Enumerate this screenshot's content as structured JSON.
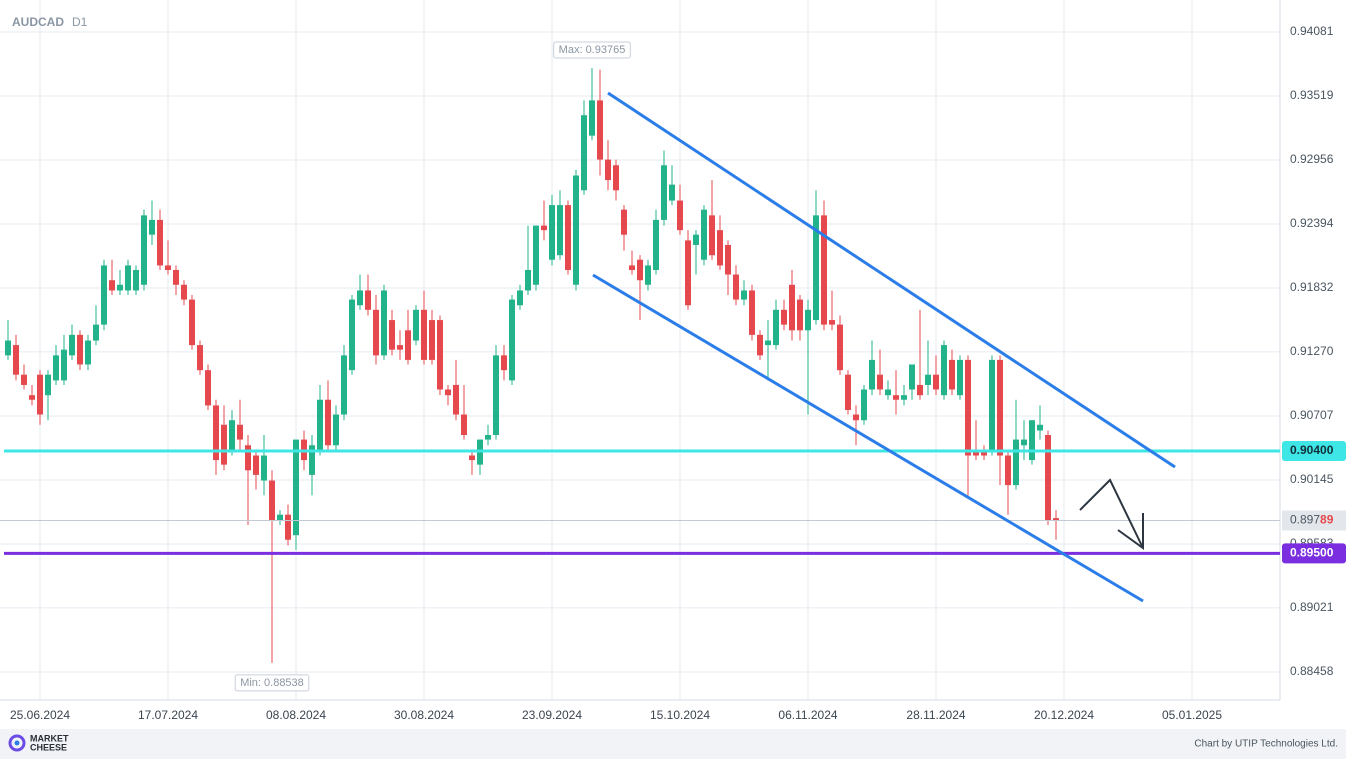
{
  "chart_data": {
    "type": "candlestick",
    "title": "AUDCAD",
    "timeframe": "D1",
    "xlim": [
      -1,
      159
    ],
    "ylim": [
      0.88212,
      0.94362
    ],
    "yticks": [
      0.94081,
      0.93519,
      0.92956,
      0.92394,
      0.91832,
      {
        "value": 0.9127,
        "label": "0.91270"
      },
      0.90707,
      0.90145,
      0.89583,
      0.89021,
      0.88458
    ],
    "xticks": [
      {
        "value": 4,
        "label": "25.06.2024"
      },
      {
        "value": 20,
        "label": "17.07.2024"
      },
      {
        "value": 36,
        "label": "08.08.2024"
      },
      {
        "value": 52,
        "label": "30.08.2024"
      },
      {
        "value": 68,
        "label": "23.09.2024"
      },
      {
        "value": 84,
        "label": "15.10.2024"
      },
      {
        "value": 100,
        "label": "06.11.2024"
      },
      {
        "value": 116,
        "label": "28.11.2024"
      },
      {
        "value": 132,
        "label": "20.12.2024"
      },
      {
        "value": 148,
        "label": "05.01.2025"
      }
    ],
    "grid": true,
    "up_color": "#22b38a",
    "down_color": "#e5484d",
    "ohlc": [
      [
        0.9124,
        0.9155,
        0.912,
        0.9137
      ],
      [
        0.9133,
        0.9142,
        0.9102,
        0.9107
      ],
      [
        0.9107,
        0.9116,
        0.9094,
        0.9098
      ],
      [
        0.9089,
        0.9098,
        0.908,
        0.9085
      ],
      [
        0.9107,
        0.9111,
        0.9063,
        0.9072
      ],
      [
        0.9089,
        0.9111,
        0.9067,
        0.9107
      ],
      [
        0.9102,
        0.9133,
        0.9098,
        0.9124
      ],
      [
        0.9102,
        0.9142,
        0.9098,
        0.9129
      ],
      [
        0.9124,
        0.9151,
        0.912,
        0.9142
      ],
      [
        0.9142,
        0.9146,
        0.9111,
        0.9116
      ],
      [
        0.9116,
        0.9142,
        0.9111,
        0.9137
      ],
      [
        0.9137,
        0.9168,
        0.9133,
        0.9151
      ],
      [
        0.9151,
        0.9208,
        0.9146,
        0.9203
      ],
      [
        0.919,
        0.9208,
        0.9177,
        0.9181
      ],
      [
        0.9181,
        0.9199,
        0.9177,
        0.9186
      ],
      [
        0.9181,
        0.9208,
        0.9177,
        0.9203
      ],
      [
        0.9181,
        0.9203,
        0.9177,
        0.9199
      ],
      [
        0.9186,
        0.9252,
        0.9181,
        0.9247
      ],
      [
        0.923,
        0.926,
        0.9221,
        0.9243
      ],
      [
        0.9243,
        0.9252,
        0.9199,
        0.9203
      ],
      [
        0.9203,
        0.9225,
        0.9195,
        0.9199
      ],
      [
        0.9199,
        0.9203,
        0.9177,
        0.9186
      ],
      [
        0.9186,
        0.919,
        0.9168,
        0.9173
      ],
      [
        0.9173,
        0.9177,
        0.9129,
        0.9133
      ],
      [
        0.9133,
        0.9137,
        0.9107,
        0.9111
      ],
      [
        0.9111,
        0.9116,
        0.9076,
        0.908
      ],
      [
        0.908,
        0.9085,
        0.9019,
        0.9032
      ],
      [
        0.9063,
        0.908,
        0.9023,
        0.9028
      ],
      [
        0.9041,
        0.9076,
        0.9036,
        0.9067
      ],
      [
        0.9063,
        0.9085,
        0.9041,
        0.905
      ],
      [
        0.9045,
        0.9054,
        0.8975,
        0.9023
      ],
      [
        0.9036,
        0.9041,
        0.9006,
        0.9019
      ],
      [
        0.9014,
        0.9054,
        0.9001,
        0.9036
      ],
      [
        0.9014,
        0.9023,
        0.88538,
        0.8979
      ],
      [
        0.8979,
        0.8988,
        0.8975,
        0.8984
      ],
      [
        0.8984,
        0.8993,
        0.8957,
        0.8962
      ],
      [
        0.8966,
        0.905,
        0.8953,
        0.905
      ],
      [
        0.905,
        0.9058,
        0.9023,
        0.9032
      ],
      [
        0.9019,
        0.9054,
        0.9001,
        0.9045
      ],
      [
        0.9041,
        0.9098,
        0.9036,
        0.9085
      ],
      [
        0.9085,
        0.9102,
        0.9041,
        0.9045
      ],
      [
        0.9045,
        0.908,
        0.9041,
        0.9072
      ],
      [
        0.9072,
        0.9133,
        0.9067,
        0.9124
      ],
      [
        0.9111,
        0.9177,
        0.9107,
        0.9173
      ],
      [
        0.9168,
        0.9195,
        0.9164,
        0.9181
      ],
      [
        0.9181,
        0.9195,
        0.9159,
        0.9164
      ],
      [
        0.9164,
        0.9177,
        0.9116,
        0.9124
      ],
      [
        0.9124,
        0.9186,
        0.912,
        0.9181
      ],
      [
        0.9155,
        0.9164,
        0.9124,
        0.9129
      ],
      [
        0.9133,
        0.9146,
        0.912,
        0.9129
      ],
      [
        0.9146,
        0.9164,
        0.9116,
        0.912
      ],
      [
        0.9137,
        0.9168,
        0.9133,
        0.9164
      ],
      [
        0.9164,
        0.9181,
        0.9116,
        0.912
      ],
      [
        0.9155,
        0.9164,
        0.9116,
        0.912
      ],
      [
        0.9155,
        0.9159,
        0.9089,
        0.9094
      ],
      [
        0.9094,
        0.9098,
        0.908,
        0.9089
      ],
      [
        0.9098,
        0.912,
        0.9067,
        0.9072
      ],
      [
        0.9072,
        0.9098,
        0.905,
        0.9054
      ],
      [
        0.9036,
        0.9041,
        0.9019,
        0.9032
      ],
      [
        0.9028,
        0.905,
        0.9019,
        0.905
      ],
      [
        0.905,
        0.9063,
        0.9045,
        0.9054
      ],
      [
        0.9054,
        0.9133,
        0.905,
        0.9124
      ],
      [
        0.9124,
        0.9133,
        0.9102,
        0.9111
      ],
      [
        0.9102,
        0.9177,
        0.9098,
        0.9173
      ],
      [
        0.9168,
        0.9186,
        0.9164,
        0.9181
      ],
      [
        0.9181,
        0.9238,
        0.9177,
        0.9199
      ],
      [
        0.9186,
        0.9238,
        0.9181,
        0.9238
      ],
      [
        0.9238,
        0.926,
        0.9225,
        0.9234
      ],
      [
        0.9208,
        0.9265,
        0.9203,
        0.9256
      ],
      [
        0.9212,
        0.9269,
        0.9208,
        0.9256
      ],
      [
        0.9256,
        0.926,
        0.9195,
        0.9199
      ],
      [
        0.9186,
        0.9287,
        0.9181,
        0.9282
      ],
      [
        0.9269,
        0.9348,
        0.9265,
        0.9335
      ],
      [
        0.9317,
        0.93765,
        0.9313,
        0.9348
      ],
      [
        0.9348,
        0.9375,
        0.9282,
        0.9296
      ],
      [
        0.9296,
        0.9313,
        0.9269,
        0.9278
      ],
      [
        0.9291,
        0.9296,
        0.926,
        0.9269
      ],
      [
        0.9252,
        0.9256,
        0.9216,
        0.923
      ],
      [
        0.9203,
        0.9216,
        0.9195,
        0.9199
      ],
      [
        0.9208,
        0.9212,
        0.9155,
        0.919
      ],
      [
        0.9186,
        0.9208,
        0.9181,
        0.9203
      ],
      [
        0.9199,
        0.9252,
        0.9195,
        0.9243
      ],
      [
        0.9243,
        0.9304,
        0.9238,
        0.9291
      ],
      [
        0.926,
        0.9291,
        0.9256,
        0.9274
      ],
      [
        0.926,
        0.9274,
        0.923,
        0.9234
      ],
      [
        0.9225,
        0.9234,
        0.9164,
        0.9168
      ],
      [
        0.9221,
        0.9234,
        0.9195,
        0.923
      ],
      [
        0.9208,
        0.9256,
        0.9203,
        0.9252
      ],
      [
        0.9247,
        0.9278,
        0.9208,
        0.9212
      ],
      [
        0.9234,
        0.9247,
        0.9199,
        0.9203
      ],
      [
        0.9221,
        0.9225,
        0.9177,
        0.9195
      ],
      [
        0.9195,
        0.9203,
        0.9168,
        0.9173
      ],
      [
        0.9173,
        0.919,
        0.9168,
        0.9181
      ],
      [
        0.9181,
        0.9186,
        0.9137,
        0.9142
      ],
      [
        0.9142,
        0.9146,
        0.912,
        0.9124
      ],
      [
        0.9133,
        0.9155,
        0.9102,
        0.9137
      ],
      [
        0.9133,
        0.9173,
        0.9129,
        0.9164
      ],
      [
        0.9164,
        0.9173,
        0.9146,
        0.9151
      ],
      [
        0.9186,
        0.9199,
        0.9137,
        0.9146
      ],
      [
        0.9173,
        0.9177,
        0.9137,
        0.9146
      ],
      [
        0.9146,
        0.9173,
        0.9072,
        0.9164
      ],
      [
        0.9155,
        0.9269,
        0.9151,
        0.9247
      ],
      [
        0.9247,
        0.926,
        0.9146,
        0.9151
      ],
      [
        0.9155,
        0.9181,
        0.9146,
        0.9151
      ],
      [
        0.9151,
        0.9159,
        0.9107,
        0.9111
      ],
      [
        0.9107,
        0.9111,
        0.9072,
        0.9076
      ],
      [
        0.9072,
        0.908,
        0.9045,
        0.9067
      ],
      [
        0.9067,
        0.9098,
        0.9063,
        0.9094
      ],
      [
        0.9094,
        0.9137,
        0.9089,
        0.912
      ],
      [
        0.9107,
        0.9129,
        0.9089,
        0.9094
      ],
      [
        0.9089,
        0.9102,
        0.9085,
        0.9094
      ],
      [
        0.9089,
        0.9111,
        0.9072,
        0.9085
      ],
      [
        0.9085,
        0.9098,
        0.908,
        0.9089
      ],
      [
        0.9094,
        0.9116,
        0.9085,
        0.9116
      ],
      [
        0.9098,
        0.9164,
        0.9085,
        0.9089
      ],
      [
        0.9098,
        0.9137,
        0.9089,
        0.9107
      ],
      [
        0.9107,
        0.9124,
        0.9089,
        0.9094
      ],
      [
        0.9089,
        0.9137,
        0.9085,
        0.9133
      ],
      [
        0.912,
        0.9129,
        0.9089,
        0.9094
      ],
      [
        0.9089,
        0.9124,
        0.9085,
        0.912
      ],
      [
        0.912,
        0.9124,
        0.9001,
        0.9036
      ],
      [
        0.9041,
        0.9067,
        0.9032,
        0.9036
      ],
      [
        0.9041,
        0.9045,
        0.9032,
        0.9036
      ],
      [
        0.9041,
        0.9124,
        0.9036,
        0.912
      ],
      [
        0.912,
        0.9124,
        0.901,
        0.9036
      ],
      [
        0.9036,
        0.9041,
        0.8984,
        0.901
      ],
      [
        0.901,
        0.9085,
        0.9006,
        0.905
      ],
      [
        0.9045,
        0.9067,
        0.9032,
        0.905
      ],
      [
        0.9032,
        0.9067,
        0.9028,
        0.9067
      ],
      [
        0.9058,
        0.908,
        0.905,
        0.9063
      ],
      [
        0.9054,
        0.9058,
        0.8975,
        0.8979
      ],
      [
        0.8981,
        0.8988,
        0.8962,
        0.89789
      ]
    ],
    "annotations": {
      "max": "Max: 0.93765",
      "min": "Min: 0.88538"
    },
    "levels": [
      {
        "value": 0.904,
        "label": "0.90400",
        "color": "#3ee6e6"
      },
      {
        "value": 0.895,
        "label": "0.89500",
        "color": "#7a2ee0"
      }
    ],
    "last_price": {
      "value": 0.89789,
      "label": "0.89789"
    },
    "logo": [
      "MARKET",
      "CHEESE"
    ],
    "credit": "Chart by UTIP Technologies Ltd."
  }
}
